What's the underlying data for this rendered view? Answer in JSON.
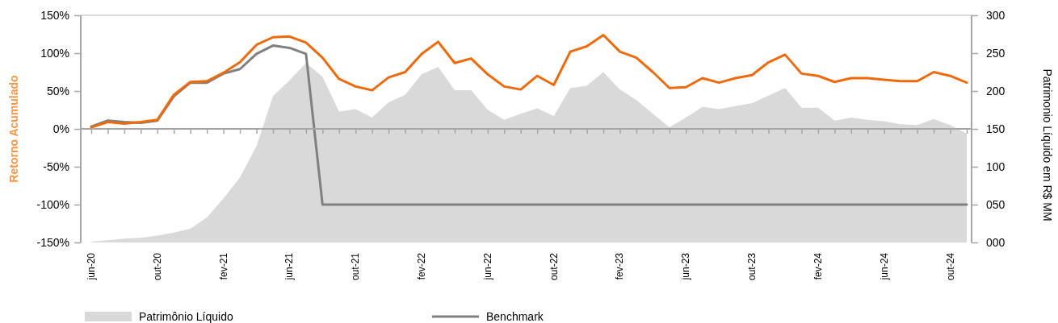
{
  "chart_data": {
    "type": "line",
    "ylabel": "Retorno Acumulado",
    "y2label": "Patrimonio Líquido em R$ MM",
    "categories": [
      "jun-20",
      null,
      null,
      null,
      "out-20",
      null,
      null,
      null,
      "fev-21",
      null,
      null,
      null,
      "jun-21",
      null,
      null,
      null,
      "out-21",
      null,
      null,
      null,
      "fev-22",
      null,
      null,
      null,
      "jun-22",
      null,
      null,
      null,
      "out-22",
      null,
      null,
      null,
      "fev-23",
      null,
      null,
      null,
      "jun-23",
      null,
      null,
      null,
      "out-23",
      null,
      null,
      null,
      "fev-24",
      null,
      null,
      null,
      "jun-24",
      null,
      null,
      null,
      "out-24",
      null
    ],
    "ylim": [
      -150,
      150
    ],
    "yticks": [
      {
        "value": -150,
        "label": "-150%"
      },
      {
        "value": -100,
        "label": "-100%"
      },
      {
        "value": -50,
        "label": "-50%"
      },
      {
        "value": 0,
        "label": "0%"
      },
      {
        "value": 50,
        "label": "50%"
      },
      {
        "value": 100,
        "label": "100%"
      },
      {
        "value": 150,
        "label": "150%"
      }
    ],
    "y2lim": [
      0,
      300
    ],
    "y2ticks": [
      {
        "value": 0,
        "label": "000"
      },
      {
        "value": 50,
        "label": "050"
      },
      {
        "value": 100,
        "label": "100"
      },
      {
        "value": 150,
        "label": "150"
      },
      {
        "value": 200,
        "label": "200"
      },
      {
        "value": 250,
        "label": "250"
      },
      {
        "value": 300,
        "label": "300"
      }
    ],
    "legend": "bottom",
    "series": [
      {
        "name": "Patrimônio Líquido",
        "type": "area",
        "axis": "y2",
        "color": "#d9d9d9",
        "values": [
          1,
          3,
          5,
          6,
          9,
          13,
          18,
          33,
          58,
          86,
          127,
          193,
          214,
          237,
          219,
          173,
          176,
          165,
          185,
          195,
          222,
          232,
          201,
          201,
          175,
          162,
          170,
          177,
          167,
          204,
          207,
          225,
          202,
          188,
          170,
          152,
          165,
          179,
          176,
          180,
          184,
          194,
          204,
          178,
          178,
          161,
          165,
          162,
          160,
          156,
          155,
          163,
          155,
          144
        ]
      },
      {
        "name": "Benchmark",
        "color": "#808080",
        "values": [
          3,
          11,
          9,
          8,
          11,
          43,
          61,
          61,
          73,
          79,
          99,
          110,
          107,
          99,
          -100,
          -100,
          -100,
          -100,
          -100,
          -100,
          -100,
          -100,
          -100,
          -100,
          -100,
          -100,
          -100,
          -100,
          -100,
          -100,
          -100,
          -100,
          -100,
          -100,
          -100,
          -100,
          -100,
          -100,
          -100,
          -100,
          -100,
          -100,
          -100,
          -100,
          -100,
          -100,
          -100,
          -100,
          -100,
          -100,
          -100,
          -100,
          -100,
          -100
        ]
      },
      {
        "color": "#ee6a0b",
        "values": [
          2,
          9,
          7,
          9,
          12,
          45,
          62,
          63,
          74,
          88,
          111,
          121,
          122,
          114,
          94,
          66,
          56,
          51,
          68,
          75,
          99,
          115,
          87,
          93,
          72,
          56,
          52,
          70,
          58,
          102,
          109,
          124,
          102,
          94,
          75,
          54,
          55,
          67,
          61,
          67,
          71,
          88,
          98,
          73,
          70,
          62,
          67,
          67,
          65,
          63,
          63,
          75,
          70,
          61
        ]
      }
    ]
  }
}
